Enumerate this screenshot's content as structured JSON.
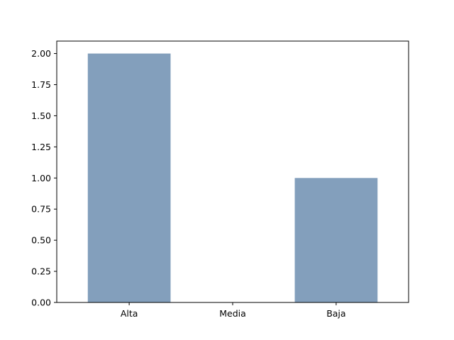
{
  "chart_data": {
    "type": "bar",
    "title": "",
    "xlabel": "",
    "ylabel": "",
    "categories": [
      "Alta",
      "Media",
      "Baja"
    ],
    "values": [
      2,
      0,
      1
    ],
    "ylim": [
      0,
      2.1
    ],
    "yticks": [
      "0.00",
      "0.25",
      "0.50",
      "0.75",
      "1.00",
      "1.25",
      "1.50",
      "1.75",
      "2.00"
    ],
    "grid": false,
    "legend": "none",
    "bar_color": "#839fbc"
  }
}
